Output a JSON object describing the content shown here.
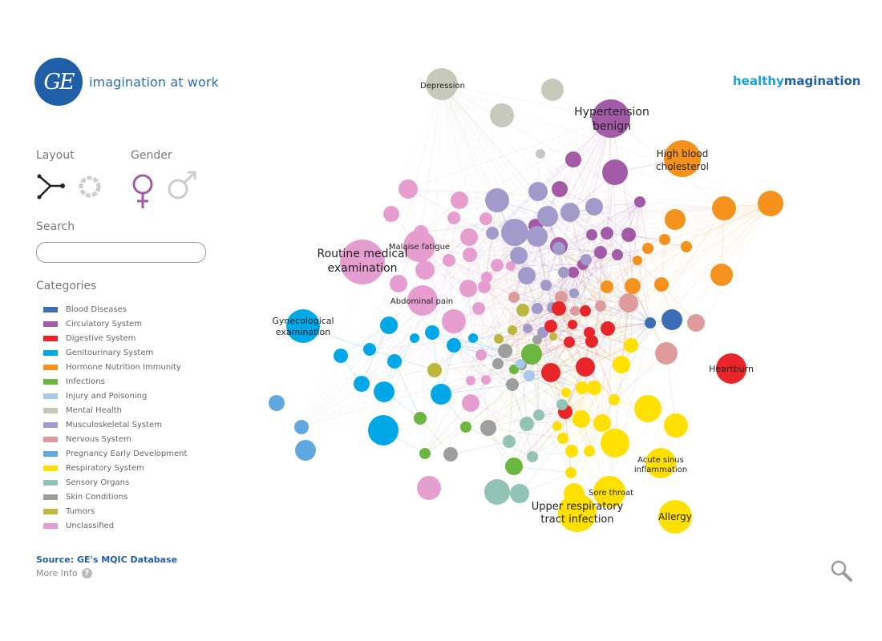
{
  "header": {
    "tagline": "imagination at work",
    "brand_part1": "healthy",
    "brand_part2": "magination",
    "logo_text": "GE"
  },
  "controls": {
    "layout_label": "Layout",
    "gender_label": "Gender",
    "search_label": "Search",
    "search_value": "",
    "categories_label": "Categories"
  },
  "categories": [
    {
      "name": "Blood Diseases",
      "color": "#3a6db5"
    },
    {
      "name": "Circulatory System",
      "color": "#a35ba8"
    },
    {
      "name": "Digestive System",
      "color": "#e8262a"
    },
    {
      "name": "Genitourinary System",
      "color": "#00a8e8"
    },
    {
      "name": "Hormone Nutrition Immunity",
      "color": "#f5921e"
    },
    {
      "name": "Infections",
      "color": "#6bb63e"
    },
    {
      "name": "Injury and Poisoning",
      "color": "#a7c9ed"
    },
    {
      "name": "Mental Health",
      "color": "#c8c8bd"
    },
    {
      "name": "Musculoskeletal System",
      "color": "#a19bcb"
    },
    {
      "name": "Nervous System",
      "color": "#dd9b9b"
    },
    {
      "name": "Pregnancy Early Development",
      "color": "#5fa8e0"
    },
    {
      "name": "Respiratory System",
      "color": "#ffe000"
    },
    {
      "name": "Sensory Organs",
      "color": "#92c3b4"
    },
    {
      "name": "Skin Conditions",
      "color": "#9e9e9e"
    },
    {
      "name": "Tumors",
      "color": "#bdb83d"
    },
    {
      "name": "Unclassified",
      "color": "#e69ed1"
    }
  ],
  "footer": {
    "source": "Source: GE's MQIC Database",
    "more_info": "More Info",
    "more_info_icon": "?"
  },
  "labels": {
    "depression": "Depression",
    "hypertension_1": "Hypertension",
    "hypertension_2": "benign",
    "cholesterol_1": "High blood",
    "cholesterol_2": "cholesterol",
    "routine_1": "Routine medical",
    "routine_2": "examination",
    "malaise": "Malaise fatigue",
    "abdominal": "Abdominal pain",
    "gyneco_1": "Gynecological",
    "gyneco_2": "examination",
    "heartburn": "Heartburn",
    "sinus_1": "Acute sinus",
    "sinus_2": "inflammation",
    "sore": "Sore throat",
    "upper_1": "Upper respiratory",
    "upper_2": "tract infection",
    "allergy": "Allergy"
  },
  "icons": {
    "layout_network": "network-layout-icon",
    "layout_ring": "ring-layout-icon",
    "female": "female-icon",
    "male": "male-icon",
    "zoom": "magnifier-icon"
  }
}
